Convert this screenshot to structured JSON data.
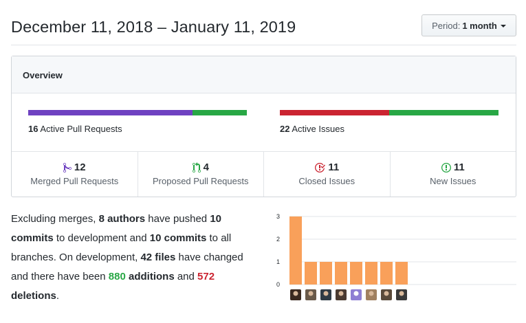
{
  "header": {
    "date_range": "December 11, 2018 – January 11, 2019",
    "period_label": "Period:",
    "period_value": "1 month"
  },
  "overview": {
    "title": "Overview",
    "pull_requests": {
      "count": "16",
      "label": "Active Pull Requests",
      "merged": 12,
      "proposed": 4
    },
    "issues": {
      "count": "22",
      "label": "Active Issues",
      "closed": 11,
      "new": 11
    },
    "stats": [
      {
        "number": "12",
        "label": "Merged Pull Requests",
        "icon": "git-merge-icon",
        "color": "#6f42c1"
      },
      {
        "number": "4",
        "label": "Proposed Pull Requests",
        "icon": "git-pull-request-icon",
        "color": "#28a745"
      },
      {
        "number": "11",
        "label": "Closed Issues",
        "icon": "issue-closed-icon",
        "color": "#cb2431"
      },
      {
        "number": "11",
        "label": "New Issues",
        "icon": "issue-opened-icon",
        "color": "#28a745"
      }
    ]
  },
  "summary": {
    "p1": "Excluding merges, ",
    "authors": "8 authors",
    "p2": " have pushed ",
    "commits_dev": "10 commits",
    "p3": " to development and ",
    "commits_all": "10 commits",
    "p4": " to all branches. On development, ",
    "files": "42 files",
    "p5": " have changed and there have been ",
    "additions_num": "880",
    "additions_word": " additions",
    "p6": " and ",
    "deletions_num": "572",
    "deletions_word": " deletions",
    "p7": "."
  },
  "colors": {
    "merged": "#6f42c1",
    "open": "#28a745",
    "closed": "#cb2431",
    "commit_bar": "#f9a05a"
  },
  "chart_data": {
    "type": "bar",
    "categories": [
      "author-1",
      "author-2",
      "author-3",
      "author-4",
      "author-5",
      "author-6",
      "author-7",
      "author-8"
    ],
    "values": [
      3,
      1,
      1,
      1,
      1,
      1,
      1,
      1
    ],
    "yticks": [
      "0",
      "1",
      "2",
      "3"
    ],
    "ylim": [
      0,
      3
    ],
    "grid": true,
    "title": "",
    "xlabel": "",
    "ylabel": ""
  }
}
